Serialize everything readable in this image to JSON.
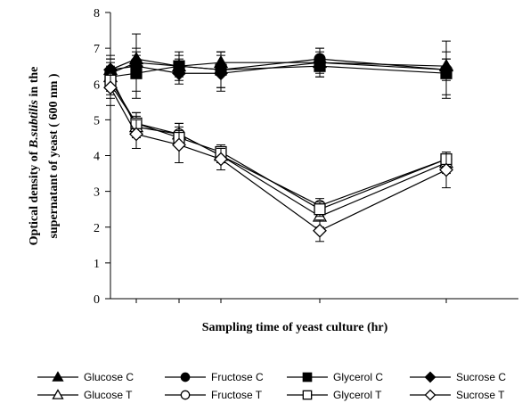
{
  "chart_data": {
    "type": "line",
    "title": "",
    "xlabel": "Sampling time of yeast culture (hr)",
    "ylabel": {
      "prefix": "Optical density of ",
      "italic": "B.subtilis",
      "suffix": " in the",
      "line2": "supernatant of yeast ( 600 nm )"
    },
    "ylim": [
      0,
      8
    ],
    "yticks": [
      "0",
      "1",
      "2",
      "3",
      "4",
      "5",
      "6",
      "7",
      "8"
    ],
    "x_ticks_labeled": false,
    "grid": false,
    "legend_position": "bottom",
    "series": [
      {
        "name": "Glucose C",
        "marker": "triangle",
        "filled": true,
        "values": [
          6.4,
          6.7,
          6.5,
          6.6,
          6.6,
          6.5
        ],
        "err": [
          0.3,
          0.3,
          0.2,
          0.3,
          0.3,
          0.2
        ]
      },
      {
        "name": "Fructose C",
        "marker": "circle",
        "filled": true,
        "values": [
          6.3,
          6.6,
          6.5,
          6.4,
          6.7,
          6.4
        ],
        "err": [
          0.3,
          0.3,
          0.3,
          0.5,
          0.3,
          0.3
        ]
      },
      {
        "name": "Glycerol C",
        "marker": "square",
        "filled": true,
        "values": [
          6.2,
          6.3,
          6.5,
          6.4,
          6.5,
          6.3
        ],
        "err": [
          0.6,
          0.5,
          0.4,
          0.5,
          0.3,
          0.6
        ]
      },
      {
        "name": "Sucrose C",
        "marker": "diamond",
        "filled": true,
        "values": [
          6.4,
          6.5,
          6.3,
          6.3,
          6.6,
          6.4
        ],
        "err": [
          0.3,
          0.9,
          0.3,
          0.5,
          0.4,
          0.8
        ]
      },
      {
        "name": "Glucose T",
        "marker": "triangle",
        "filled": false,
        "values": [
          6.2,
          4.8,
          4.6,
          4.0,
          2.3,
          3.8
        ],
        "err": [
          0.3,
          0.3,
          0.3,
          0.2,
          0.3,
          0.3
        ]
      },
      {
        "name": "Fructose T",
        "marker": "circle",
        "filled": false,
        "values": [
          6.0,
          4.9,
          4.6,
          4.0,
          2.6,
          3.9
        ],
        "err": [
          0.3,
          0.3,
          0.3,
          0.2,
          0.2,
          0.2
        ]
      },
      {
        "name": "Glycerol T",
        "marker": "square",
        "filled": false,
        "values": [
          6.1,
          4.9,
          4.5,
          4.1,
          2.5,
          3.9
        ],
        "err": [
          0.3,
          0.3,
          0.2,
          0.2,
          0.2,
          0.2
        ]
      },
      {
        "name": "Sucrose T",
        "marker": "diamond",
        "filled": false,
        "values": [
          5.9,
          4.6,
          4.3,
          3.9,
          1.9,
          3.6
        ],
        "err": [
          0.5,
          0.4,
          0.5,
          0.3,
          0.3,
          0.5
        ]
      }
    ],
    "colors": {
      "line": "#000000",
      "background": "#ffffff"
    }
  }
}
